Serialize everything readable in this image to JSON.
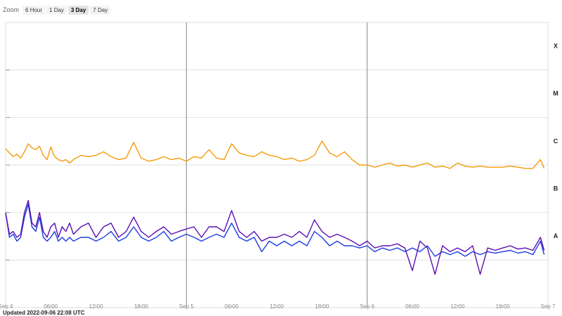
{
  "zoom": {
    "label": "Zoom",
    "buttons": [
      "6 Hour",
      "1 Day",
      "3 Day",
      "7 Day"
    ],
    "active": "3 Day"
  },
  "footer": {
    "updated": "Updated 2022-09-06 22:08 UTC"
  },
  "chart_data": {
    "type": "line",
    "x_unit": "hours since Sep 4 00:00 UTC",
    "xlim": [
      0,
      72
    ],
    "x_ticks": [
      {
        "x": 0,
        "label": "Sep 4"
      },
      {
        "x": 6,
        "label": "06:00"
      },
      {
        "x": 12,
        "label": "12:00"
      },
      {
        "x": 18,
        "label": "18:00"
      },
      {
        "x": 24,
        "label": "Sep 5"
      },
      {
        "x": 30,
        "label": "06:00"
      },
      {
        "x": 36,
        "label": "12:00"
      },
      {
        "x": 42,
        "label": "18:00"
      },
      {
        "x": 48,
        "label": "Sep 6"
      },
      {
        "x": 54,
        "label": "06:00"
      },
      {
        "x": 60,
        "label": "12:00"
      },
      {
        "x": 66,
        "label": "18:00"
      },
      {
        "x": 72,
        "label": "Sep 7"
      }
    ],
    "day_boundaries": [
      24,
      48
    ],
    "y_scale": "log",
    "ylim_exponent": [
      -9,
      -3
    ],
    "flare_classes": [
      {
        "label": "X",
        "level": 0.0001
      },
      {
        "label": "M",
        "level": 1e-05
      },
      {
        "label": "C",
        "level": 1e-06
      },
      {
        "label": "B",
        "level": 1e-07
      },
      {
        "label": "A",
        "level": 1e-08
      }
    ],
    "colors": {
      "long": "#f59a0c",
      "long_highlight": "#e8141b",
      "short_a": "#1b3de0",
      "short_b": "#5a0fb3"
    },
    "series": [
      {
        "name": "",
        "color": "#f59a0c",
        "x": [
          0,
          0.5,
          1,
          1.5,
          2,
          2.5,
          3,
          3.5,
          4,
          4.5,
          5,
          5.5,
          6,
          6.5,
          7,
          7.5,
          8,
          8.5,
          9,
          10,
          11,
          12,
          13,
          14,
          15,
          16,
          17,
          18,
          19,
          20,
          21,
          22,
          23,
          24,
          25,
          26,
          27,
          28,
          29,
          30,
          31,
          32,
          33,
          34,
          35,
          36,
          37,
          38,
          39,
          40,
          41,
          42,
          43,
          44,
          45,
          46,
          47,
          48,
          49,
          50,
          51,
          52,
          53,
          54,
          55,
          56,
          57,
          58,
          59,
          60,
          61,
          62,
          63,
          64,
          65,
          66,
          67,
          68,
          69,
          70,
          71,
          71.5
        ],
        "y": [
          2.2e-06,
          1.8e-06,
          1.5e-06,
          1.7e-06,
          1.4e-06,
          1.9e-06,
          2.8e-06,
          2.3e-06,
          2.1e-06,
          2.5e-06,
          1.6e-06,
          1.3e-06,
          2.4e-06,
          1.5e-06,
          1.3e-06,
          1.2e-06,
          1.3e-06,
          1.1e-06,
          1.3e-06,
          1.6e-06,
          1.5e-06,
          1.6e-06,
          1.9e-06,
          1.5e-06,
          1.3e-06,
          1.4e-06,
          3e-06,
          1.4e-06,
          1.2e-06,
          1.3e-06,
          1.5e-06,
          1.3e-06,
          1.4e-06,
          1.2e-06,
          1.5e-06,
          1.4e-06,
          2.1e-06,
          1.4e-06,
          1.3e-06,
          2.8e-06,
          1.8e-06,
          1.6e-06,
          1.5e-06,
          1.9e-06,
          1.6e-06,
          1.5e-06,
          1.3e-06,
          1.4e-06,
          1.2e-06,
          1.3e-06,
          1.6e-06,
          3.2e-06,
          1.8e-06,
          1.5e-06,
          1.9e-06,
          1.3e-06,
          1e-06,
          1e-06,
          9e-07,
          1e-06,
          1.1e-06,
          9.5e-07,
          1e-06,
          9e-07,
          1e-06,
          1.1e-06,
          9e-07,
          9.5e-07,
          8.5e-07,
          1.1e-06,
          9.5e-07,
          9e-07,
          9.5e-07,
          9e-07,
          9e-07,
          9e-07,
          9.5e-07,
          9e-07,
          8.5e-07,
          8.5e-07,
          1.3e-06,
          8.5e-07
        ]
      },
      {
        "name": "",
        "color": "#1b3de0",
        "x": [
          0,
          0.5,
          1,
          1.5,
          2,
          2.5,
          3,
          3.5,
          4,
          4.5,
          5,
          5.5,
          6,
          6.5,
          7,
          7.5,
          8,
          8.5,
          9,
          10,
          11,
          12,
          13,
          14,
          15,
          16,
          17,
          18,
          19,
          20,
          21,
          22,
          23,
          24,
          25,
          26,
          27,
          28,
          29,
          30,
          31,
          32,
          33,
          34,
          35,
          36,
          37,
          38,
          39,
          40,
          41,
          42,
          43,
          44,
          45,
          46,
          47,
          48,
          49,
          50,
          51,
          52,
          53,
          54,
          55,
          56,
          57,
          58,
          59,
          60,
          61,
          62,
          63,
          64,
          65,
          66,
          67,
          68,
          69,
          70,
          71,
          71.5
        ],
        "y": [
          1e-07,
          3e-08,
          3.5e-08,
          2.5e-08,
          3e-08,
          8e-08,
          1.5e-07,
          5e-08,
          4e-08,
          8e-08,
          3e-08,
          2.5e-08,
          3e-08,
          4e-08,
          2.5e-08,
          3e-08,
          2.5e-08,
          3e-08,
          2.5e-08,
          3e-08,
          3e-08,
          2.5e-08,
          3e-08,
          4e-08,
          2.5e-08,
          3e-08,
          5e-08,
          3e-08,
          2.5e-08,
          3e-08,
          4e-08,
          2.5e-08,
          3e-08,
          3.5e-08,
          3e-08,
          2.5e-08,
          3e-08,
          3.5e-08,
          3e-08,
          6e-08,
          3e-08,
          2.5e-08,
          3e-08,
          1.5e-08,
          2.5e-08,
          2e-08,
          2.5e-08,
          2e-08,
          2.5e-08,
          2e-08,
          4e-08,
          3e-08,
          2e-08,
          2.5e-08,
          2e-08,
          2e-08,
          1.8e-08,
          2e-08,
          1.5e-08,
          1.8e-08,
          1.6e-08,
          1.8e-08,
          1.5e-08,
          1.8e-08,
          1.5e-08,
          2e-08,
          1.2e-08,
          1.5e-08,
          1.3e-08,
          1.5e-08,
          1.2e-08,
          1.5e-08,
          1.3e-08,
          1.5e-08,
          1.4e-08,
          1.5e-08,
          1.6e-08,
          1.4e-08,
          1.5e-08,
          1.3e-08,
          2.5e-08,
          1.3e-08
        ]
      },
      {
        "name": "",
        "color": "#5a0fb3",
        "x": [
          0,
          0.5,
          1,
          1.5,
          2,
          2.5,
          3,
          3.5,
          4,
          4.5,
          5,
          5.5,
          6,
          6.5,
          7,
          7.5,
          8,
          8.5,
          9,
          10,
          11,
          12,
          13,
          14,
          15,
          16,
          17,
          18,
          19,
          20,
          21,
          22,
          23,
          24,
          25,
          26,
          27,
          28,
          29,
          30,
          31,
          32,
          33,
          34,
          35,
          36,
          37,
          38,
          39,
          40,
          41,
          42,
          43,
          44,
          45,
          46,
          47,
          48,
          49,
          50,
          51,
          52,
          53,
          54,
          55,
          56,
          57,
          58,
          59,
          60,
          61,
          62,
          63,
          64,
          65,
          66,
          67,
          68,
          69,
          70,
          71,
          71.5
        ],
        "y": [
          1e-07,
          3.5e-08,
          4e-08,
          3e-08,
          3.5e-08,
          1e-07,
          1.8e-07,
          6e-08,
          5e-08,
          1e-07,
          4e-08,
          3e-08,
          5e-08,
          6e-08,
          3e-08,
          5e-08,
          4e-08,
          6e-08,
          3.5e-08,
          5e-08,
          6e-08,
          3e-08,
          5e-08,
          6e-08,
          3e-08,
          4e-08,
          8e-08,
          4e-08,
          3e-08,
          4e-08,
          5e-08,
          3.5e-08,
          4e-08,
          4.5e-08,
          5e-08,
          3e-08,
          5e-08,
          5e-08,
          4e-08,
          1.1e-07,
          4e-08,
          3e-08,
          4e-08,
          2.5e-08,
          3e-08,
          3e-08,
          3.5e-08,
          3e-08,
          4e-08,
          3e-08,
          7e-08,
          4e-08,
          3e-08,
          3.5e-08,
          3e-08,
          2.5e-08,
          2e-08,
          2.5e-08,
          1.8e-08,
          2e-08,
          2e-08,
          2.2e-08,
          1.8e-08,
          6e-09,
          2.5e-08,
          1.8e-08,
          5e-09,
          2e-08,
          1.5e-08,
          1.8e-08,
          1.5e-08,
          2e-08,
          5e-09,
          1.8e-08,
          1.6e-08,
          1.8e-08,
          2e-08,
          1.7e-08,
          1.8e-08,
          1.6e-08,
          3e-08,
          1.6e-08
        ]
      }
    ]
  }
}
